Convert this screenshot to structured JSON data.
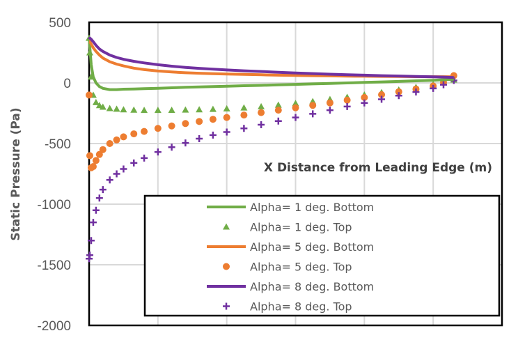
{
  "chart_data": {
    "type": "line",
    "title": "",
    "xlabel": "X Distance from Leading Edge (m)",
    "ylabel": "Static Pressure (Pa)",
    "xlim": [
      0,
      6
    ],
    "ylim": [
      -2000,
      500
    ],
    "yticks": [
      500,
      0,
      -500,
      -1000,
      -1500,
      -2000
    ],
    "ytick_labels": [
      "500",
      "0",
      "-500",
      "-1000",
      "-1500",
      "-2000"
    ],
    "grid": true,
    "legend_placement": "bottom-right",
    "x": [
      0,
      0.01,
      0.03,
      0.06,
      0.1,
      0.15,
      0.2,
      0.3,
      0.4,
      0.5,
      0.65,
      0.8,
      1.0,
      1.2,
      1.4,
      1.6,
      1.8,
      2.0,
      2.25,
      2.5,
      2.75,
      3.0,
      3.25,
      3.5,
      3.75,
      4.0,
      4.25,
      4.5,
      4.75,
      5.0,
      5.15,
      5.3
    ],
    "series": [
      {
        "name": "Alpha= 1 deg. Bottom",
        "style": "line",
        "marker": "none",
        "color": "#70ad47",
        "values": [
          370,
          300,
          150,
          50,
          0,
          -30,
          -45,
          -55,
          -55,
          -52,
          -50,
          -47,
          -44,
          -40,
          -36,
          -33,
          -30,
          -27,
          -23,
          -20,
          -16,
          -12,
          -8,
          -4,
          0,
          4,
          8,
          12,
          17,
          22,
          26,
          30
        ]
      },
      {
        "name": "Alpha= 1 deg. Top",
        "style": "marker",
        "marker": "triangle",
        "color": "#70ad47",
        "values": [
          370,
          250,
          50,
          -100,
          -160,
          -185,
          -198,
          -210,
          -215,
          -220,
          -223,
          -225,
          -225,
          -224,
          -222,
          -220,
          -216,
          -212,
          -205,
          -195,
          -182,
          -168,
          -152,
          -135,
          -117,
          -98,
          -78,
          -57,
          -35,
          -12,
          5,
          25
        ]
      },
      {
        "name": "Alpha= 5 deg. Bottom",
        "style": "line",
        "marker": "none",
        "color": "#ed7d31",
        "values": [
          340,
          340,
          320,
          290,
          260,
          230,
          205,
          175,
          155,
          140,
          122,
          110,
          98,
          90,
          84,
          80,
          76,
          73,
          70,
          67,
          64,
          62,
          60,
          58,
          56,
          55,
          54,
          53,
          52,
          51,
          51,
          50
        ]
      },
      {
        "name": "Alpha= 5 deg. Top",
        "style": "marker",
        "marker": "circle",
        "color": "#ed7d31",
        "values": [
          -100,
          -600,
          -700,
          -690,
          -640,
          -590,
          -550,
          -500,
          -470,
          -445,
          -420,
          -400,
          -375,
          -355,
          -335,
          -318,
          -300,
          -285,
          -265,
          -245,
          -225,
          -205,
          -185,
          -165,
          -142,
          -120,
          -97,
          -73,
          -50,
          -25,
          5,
          60
        ]
      },
      {
        "name": "Alpha= 8 deg. Bottom",
        "style": "line",
        "marker": "none",
        "color": "#7030a0",
        "values": [
          360,
          370,
          360,
          340,
          310,
          280,
          260,
          230,
          210,
          195,
          178,
          165,
          150,
          138,
          128,
          120,
          113,
          107,
          100,
          94,
          88,
          82,
          77,
          72,
          68,
          64,
          60,
          57,
          53,
          50,
          48,
          45
        ]
      },
      {
        "name": "Alpha= 8 deg. Top",
        "style": "marker",
        "marker": "plus",
        "color": "#7030a0",
        "values": [
          -1450,
          -1420,
          -1300,
          -1150,
          -1050,
          -950,
          -880,
          -800,
          -750,
          -710,
          -660,
          -620,
          -570,
          -530,
          -495,
          -460,
          -430,
          -405,
          -375,
          -345,
          -315,
          -285,
          -255,
          -225,
          -195,
          -165,
          -135,
          -105,
          -75,
          -45,
          -15,
          20
        ]
      }
    ]
  }
}
